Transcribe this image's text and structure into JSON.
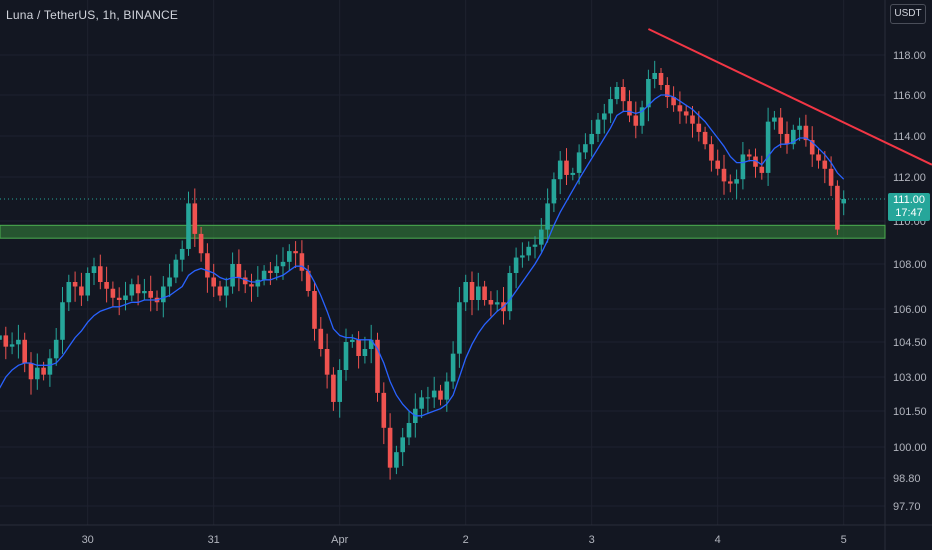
{
  "header": {
    "title": "Luna / TetherUS, 1h, BINANCE"
  },
  "currency_button": {
    "label": "USDT"
  },
  "last_price": {
    "value": "111.00",
    "countdown": "17:47"
  },
  "colors": {
    "background": "#131722",
    "up": "#26a69a",
    "down": "#ef5350",
    "ma": "#2962ff",
    "trendline": "#f23645",
    "zone": "#2e7d32"
  },
  "chart_data": {
    "type": "candlestick",
    "title": "Luna / TetherUS, 1h, BINANCE",
    "y_ticks": [
      118.0,
      116.0,
      114.0,
      112.0,
      110.0,
      108.0,
      106.0,
      104.5,
      103.0,
      101.5,
      100.0,
      98.8,
      97.7
    ],
    "y_tick_labels": [
      "118.00",
      "116.00",
      "114.00",
      "112.00",
      "110.00",
      "108.00",
      "106.00",
      "104.50",
      "103.00",
      "101.50",
      "100.00",
      "98.80",
      "97.70"
    ],
    "x_tick_labels": [
      "30",
      "31",
      "Apr",
      "2",
      "3",
      "4",
      "5"
    ],
    "x_tick_candle_index": [
      14,
      34,
      54,
      74,
      94,
      114,
      134
    ],
    "closes": [
      104.8,
      104.3,
      104.4,
      104.6,
      103.6,
      102.9,
      103.4,
      103.1,
      103.8,
      104.6,
      106.3,
      107.2,
      107.0,
      106.6,
      107.6,
      107.9,
      107.2,
      106.9,
      106.5,
      106.4,
      106.6,
      107.1,
      106.7,
      106.8,
      106.5,
      106.3,
      107.0,
      107.4,
      108.2,
      108.7,
      110.8,
      109.4,
      108.5,
      107.4,
      107.0,
      106.6,
      107.0,
      108.0,
      107.4,
      107.1,
      107.0,
      107.3,
      107.7,
      107.6,
      107.9,
      108.1,
      108.6,
      108.5,
      107.7,
      106.8,
      105.1,
      104.2,
      103.1,
      101.9,
      103.3,
      104.5,
      104.6,
      103.9,
      104.2,
      104.6,
      102.3,
      100.8,
      99.2,
      99.8,
      100.4,
      101.0,
      101.6,
      102.1,
      102.1,
      102.4,
      102.0,
      102.8,
      104.0,
      106.3,
      107.2,
      106.4,
      107.0,
      106.4,
      106.2,
      106.3,
      105.9,
      107.6,
      108.3,
      108.4,
      108.8,
      108.9,
      109.6,
      110.8,
      111.9,
      112.8,
      112.1,
      112.2,
      113.2,
      113.6,
      114.1,
      114.8,
      115.1,
      115.8,
      116.4,
      115.7,
      115.0,
      114.5,
      115.4,
      116.8,
      117.1,
      116.5,
      115.9,
      115.5,
      115.2,
      115.0,
      114.6,
      114.2,
      113.6,
      112.8,
      112.4,
      111.8,
      111.7,
      111.9,
      113.1,
      113.0,
      112.5,
      112.2,
      114.7,
      114.9,
      114.1,
      113.6,
      114.3,
      114.5,
      113.8,
      113.1,
      112.8,
      112.4,
      111.6,
      109.6,
      111.0
    ],
    "opens": [
      104.6,
      104.8,
      104.3,
      104.4,
      104.6,
      103.6,
      102.9,
      103.4,
      103.1,
      103.8,
      104.6,
      106.3,
      107.2,
      107.0,
      106.6,
      107.6,
      107.9,
      107.2,
      106.9,
      106.5,
      106.4,
      106.6,
      107.1,
      106.7,
      106.8,
      106.5,
      106.3,
      107.0,
      107.4,
      108.2,
      108.7,
      110.8,
      109.4,
      108.5,
      107.4,
      107.0,
      106.6,
      107.0,
      108.0,
      107.4,
      107.1,
      107.0,
      107.3,
      107.7,
      107.6,
      107.9,
      108.1,
      108.6,
      108.5,
      107.7,
      106.8,
      105.1,
      104.2,
      103.1,
      101.9,
      103.3,
      104.5,
      104.6,
      103.9,
      104.2,
      104.6,
      102.3,
      100.8,
      99.2,
      99.8,
      100.4,
      101.0,
      101.6,
      102.1,
      102.1,
      102.4,
      102.0,
      102.8,
      104.0,
      106.3,
      107.2,
      106.4,
      107.0,
      106.4,
      106.2,
      106.3,
      105.9,
      107.6,
      108.3,
      108.4,
      108.8,
      108.9,
      109.6,
      110.8,
      111.9,
      112.8,
      112.1,
      112.2,
      113.2,
      113.6,
      114.1,
      114.8,
      115.1,
      115.8,
      116.4,
      115.7,
      115.0,
      114.5,
      115.4,
      116.8,
      117.1,
      116.5,
      115.9,
      115.5,
      115.2,
      115.0,
      114.6,
      114.2,
      113.6,
      112.8,
      112.4,
      111.8,
      111.7,
      111.9,
      113.1,
      113.0,
      112.5,
      112.2,
      114.7,
      114.9,
      114.1,
      113.6,
      114.3,
      114.5,
      113.8,
      113.1,
      112.8,
      112.4,
      111.6,
      110.8
    ],
    "ma": [
      102.5,
      103.0,
      103.3,
      103.5,
      103.6,
      103.6,
      103.5,
      103.5,
      103.5,
      103.6,
      103.9,
      104.3,
      104.7,
      105.0,
      105.4,
      105.7,
      105.9,
      106.0,
      106.1,
      106.1,
      106.2,
      106.3,
      106.3,
      106.4,
      106.4,
      106.4,
      106.5,
      106.6,
      106.8,
      107.0,
      107.5,
      107.7,
      107.8,
      107.7,
      107.6,
      107.4,
      107.3,
      107.4,
      107.4,
      107.3,
      107.2,
      107.2,
      107.3,
      107.3,
      107.4,
      107.5,
      107.7,
      107.9,
      107.9,
      107.7,
      107.2,
      106.6,
      105.9,
      105.1,
      104.8,
      104.7,
      104.7,
      104.6,
      104.6,
      104.6,
      104.2,
      103.6,
      102.8,
      102.2,
      101.8,
      101.5,
      101.3,
      101.3,
      101.4,
      101.5,
      101.6,
      101.8,
      102.2,
      103.0,
      103.8,
      104.4,
      104.9,
      105.3,
      105.6,
      105.9,
      106.1,
      106.4,
      106.8,
      107.2,
      107.6,
      108.0,
      108.5,
      109.1,
      109.8,
      110.4,
      110.9,
      111.4,
      111.9,
      112.4,
      112.9,
      113.4,
      113.9,
      114.4,
      115.0,
      115.2,
      115.2,
      115.1,
      115.2,
      115.5,
      115.8,
      116.0,
      116.0,
      115.9,
      115.7,
      115.5,
      115.3,
      115.0,
      114.7,
      114.3,
      113.9,
      113.5,
      113.0,
      112.7,
      112.7,
      112.8,
      112.8,
      112.6,
      113.0,
      113.4,
      113.6,
      113.6,
      113.7,
      113.9,
      113.9,
      113.7,
      113.4,
      113.1,
      112.7,
      112.2,
      111.9
    ],
    "current_price": 111.0,
    "support_zone": [
      109.2,
      109.8
    ],
    "trendline_from": {
      "candle": 103,
      "price": 119.3
    },
    "trendline_to": {
      "candle": 148,
      "price": 112.6
    }
  }
}
